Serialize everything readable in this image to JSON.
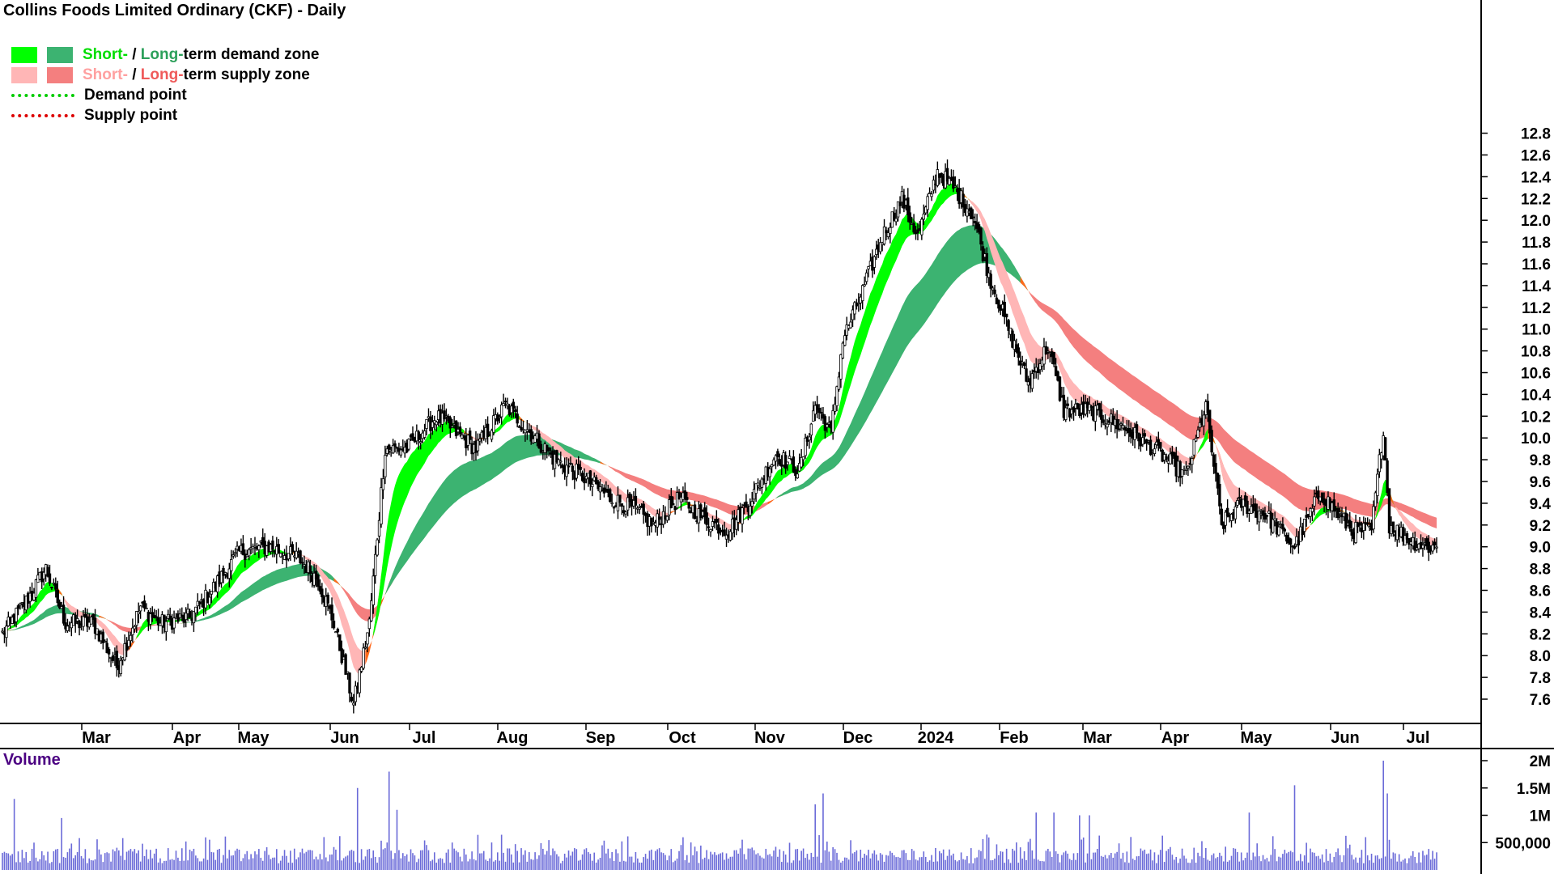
{
  "title": "Collins Foods Limited Ordinary (CKF) - Daily",
  "colors": {
    "short_demand": "#00ff00",
    "long_demand": "#3cb371",
    "short_supply": "#ffb6b6",
    "long_supply": "#f47f7f",
    "demand_point": "#00cc00",
    "supply_point": "#dd0000",
    "orange_transition": "#ff6a1a",
    "volume_bars": "#6a6ad8"
  },
  "legend": {
    "row1": {
      "short": "Short-",
      "sep": " / ",
      "long": "Long-",
      "rest": "term demand zone"
    },
    "row2": {
      "short": "Short-",
      "sep": " / ",
      "long": "Long-",
      "rest": "term supply zone"
    },
    "row3": "Demand point",
    "row4": "Supply point"
  },
  "volume_label": "Volume",
  "chart_data": [
    {
      "type": "candlestick",
      "title": "Collins Foods Limited Ordinary (CKF) - Daily",
      "x_tick_labels": [
        "Mar",
        "Apr",
        "May",
        "Jun",
        "Jul",
        "Aug",
        "Sep",
        "Oct",
        "Nov",
        "Dec",
        "2024",
        "Feb",
        "Mar",
        "Apr",
        "May",
        "Jun",
        "Jul"
      ],
      "y_tick_labels": [
        "7.6",
        "7.8",
        "8.0",
        "8.2",
        "8.4",
        "8.6",
        "8.8",
        "9.0",
        "9.2",
        "9.4",
        "9.6",
        "9.8",
        "10.0",
        "10.2",
        "10.4",
        "10.6",
        "10.8",
        "11.0",
        "11.2",
        "11.4",
        "11.6",
        "11.8",
        "12.0",
        "12.2",
        "12.4",
        "12.6",
        "12.8"
      ],
      "ylim": [
        7.3,
        12.8
      ],
      "grid": false,
      "legend_position": "top-left",
      "close_anchors": [
        [
          0,
          8.2
        ],
        [
          12,
          8.5
        ],
        [
          22,
          8.8
        ],
        [
          32,
          8.3
        ],
        [
          46,
          8.3
        ],
        [
          58,
          7.9
        ],
        [
          70,
          8.45
        ],
        [
          80,
          8.3
        ],
        [
          95,
          8.35
        ],
        [
          106,
          8.6
        ],
        [
          120,
          8.95
        ],
        [
          135,
          9.0
        ],
        [
          150,
          8.9
        ],
        [
          160,
          8.7
        ],
        [
          168,
          8.3
        ],
        [
          178,
          7.55
        ],
        [
          186,
          8.3
        ],
        [
          194,
          9.9
        ],
        [
          205,
          9.9
        ],
        [
          220,
          10.2
        ],
        [
          240,
          9.9
        ],
        [
          255,
          10.3
        ],
        [
          265,
          10.1
        ],
        [
          280,
          9.8
        ],
        [
          294,
          9.65
        ],
        [
          308,
          9.45
        ],
        [
          320,
          9.35
        ],
        [
          330,
          9.2
        ],
        [
          343,
          9.45
        ],
        [
          356,
          9.25
        ],
        [
          368,
          9.15
        ],
        [
          378,
          9.4
        ],
        [
          392,
          9.85
        ],
        [
          404,
          9.7
        ],
        [
          412,
          10.3
        ],
        [
          420,
          10.05
        ],
        [
          426,
          10.9
        ],
        [
          436,
          11.35
        ],
        [
          446,
          11.85
        ],
        [
          456,
          12.2
        ],
        [
          464,
          11.85
        ],
        [
          474,
          12.45
        ],
        [
          482,
          12.3
        ],
        [
          492,
          12.05
        ],
        [
          500,
          11.5
        ],
        [
          510,
          11.0
        ],
        [
          520,
          10.5
        ],
        [
          530,
          10.85
        ],
        [
          538,
          10.25
        ],
        [
          552,
          10.25
        ],
        [
          568,
          10.1
        ],
        [
          584,
          9.9
        ],
        [
          600,
          9.65
        ],
        [
          610,
          10.3
        ],
        [
          618,
          9.2
        ],
        [
          628,
          9.4
        ],
        [
          640,
          9.3
        ],
        [
          655,
          9.0
        ],
        [
          668,
          9.5
        ],
        [
          684,
          9.15
        ],
        [
          694,
          9.15
        ],
        [
          700,
          10.1
        ],
        [
          703,
          9.2
        ],
        [
          715,
          9.05
        ],
        [
          722,
          9.0
        ]
      ],
      "zones": {
        "short_term_demand": [
          [
            0,
            8.1,
            8.05
          ],
          [
            40,
            8.33,
            8.23
          ],
          [
            120,
            8.8,
            8.4
          ],
          [
            152,
            8.75,
            8.65
          ]
        ],
        "short_term_supply": [
          [
            300,
            9.95,
            9.85
          ],
          [
            720,
            9.2,
            9.1
          ]
        ],
        "long_term_demand": [
          [
            190,
            8.55,
            8.55
          ],
          [
            590,
            10.6,
            10.35
          ]
        ],
        "long_term_supply": [
          [
            0,
            9.35,
            9.1
          ],
          [
            190,
            8.8,
            8.55
          ],
          [
            710,
            9.85,
            9.78
          ]
        ]
      },
      "volume": {
        "label": "Volume",
        "y_tick_labels": [
          "2M",
          "1.5M",
          "1M",
          "500,000"
        ],
        "ylim": [
          0,
          2000000
        ],
        "spikes": [
          [
            6,
            1300000
          ],
          [
            30,
            950000
          ],
          [
            180,
            1500000
          ],
          [
            196,
            1800000
          ],
          [
            200,
            1100000
          ],
          [
            412,
            1200000
          ],
          [
            416,
            1400000
          ],
          [
            524,
            1050000
          ],
          [
            533,
            1050000
          ],
          [
            546,
            1000000
          ],
          [
            551,
            1000000
          ],
          [
            632,
            1050000
          ],
          [
            655,
            1550000
          ],
          [
            700,
            2000000
          ],
          [
            702,
            1400000
          ]
        ]
      }
    }
  ]
}
